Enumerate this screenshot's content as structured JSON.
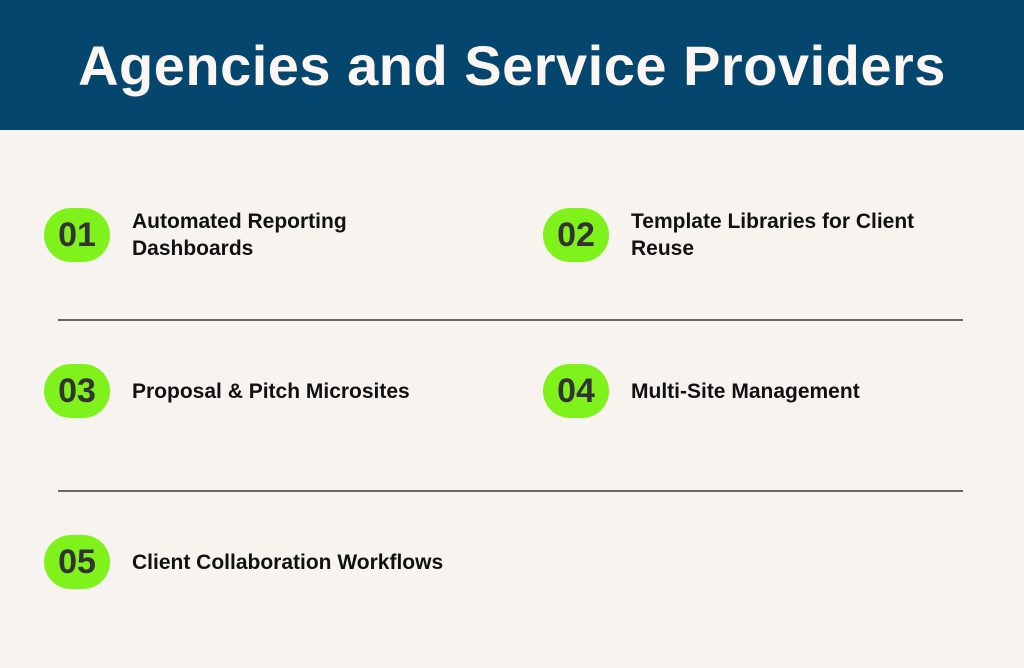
{
  "title": "Agencies and Service Providers",
  "colors": {
    "header": "#05466e",
    "badge": "#7ff21c",
    "background": "#f7f4f0"
  },
  "items": [
    {
      "number": "01",
      "label": "Automated Reporting Dashboards"
    },
    {
      "number": "02",
      "label": "Template Libraries for Client Reuse"
    },
    {
      "number": "03",
      "label": "Proposal & Pitch Microsites"
    },
    {
      "number": "04",
      "label": "Multi-Site Management"
    },
    {
      "number": "05",
      "label": "Client Collaboration Workflows"
    }
  ]
}
